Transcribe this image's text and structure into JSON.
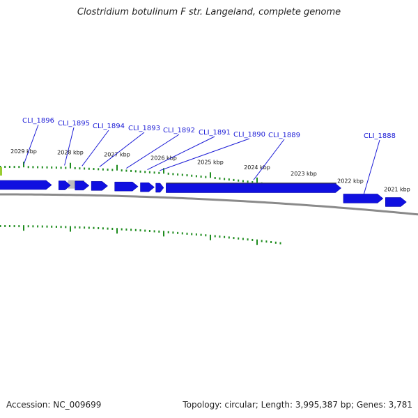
{
  "title": "Clostridium botulinum F str. Langeland, complete genome",
  "accession": "Accession: NC_009699",
  "summary": "Topology: circular; Length: 3,995,387 bp; Genes: 3,781",
  "colors": {
    "gene_forward": "#1010e0",
    "gene_label": "#1a1ad6",
    "tick": "#1e8c1e",
    "backbone": "#8a8a8a",
    "feature_dark": "#5a5a5a",
    "feature_light": "#bdbdbd",
    "edge_marker": "#9acd32"
  },
  "scale": {
    "unit": "kbp",
    "labels": [
      "2029 kbp",
      "2028 kbp",
      "2027 kbp",
      "2026 kbp",
      "2025 kbp",
      "2024 kbp",
      "2023 kbp",
      "2022 kbp",
      "2021 kbp"
    ],
    "positions_kbp": [
      2029,
      2028,
      2027,
      2026,
      2025,
      2024,
      2023,
      2022,
      2021
    ]
  },
  "genes": [
    {
      "label": "CLI_1896",
      "from_kbp": 2029.6,
      "to_kbp": 2028.4
    },
    {
      "label": "CLI_1895",
      "from_kbp": 2028.25,
      "to_kbp": 2028.0
    },
    {
      "label": "CLI_1894",
      "from_kbp": 2027.9,
      "to_kbp": 2027.6
    },
    {
      "label": "CLI_1893",
      "from_kbp": 2027.55,
      "to_kbp": 2027.2
    },
    {
      "label": "CLI_1892",
      "from_kbp": 2027.05,
      "to_kbp": 2026.55
    },
    {
      "label": "CLI_1891",
      "from_kbp": 2026.5,
      "to_kbp": 2026.2
    },
    {
      "label": "CLI_1890",
      "from_kbp": 2026.17,
      "to_kbp": 2026.0
    },
    {
      "label": "CLI_1889",
      "from_kbp": 2025.95,
      "to_kbp": 2022.2
    },
    {
      "label": "CLI_1888",
      "from_kbp": 2022.15,
      "to_kbp": 2021.3
    },
    {
      "label": "",
      "from_kbp": 2021.25,
      "to_kbp": 2020.8
    }
  ],
  "features": [
    {
      "kind": "dark",
      "from_kbp": 2025.95,
      "to_kbp": 2022.3
    },
    {
      "kind": "light",
      "from_kbp": 2028.05,
      "to_kbp": 2027.7
    }
  ]
}
